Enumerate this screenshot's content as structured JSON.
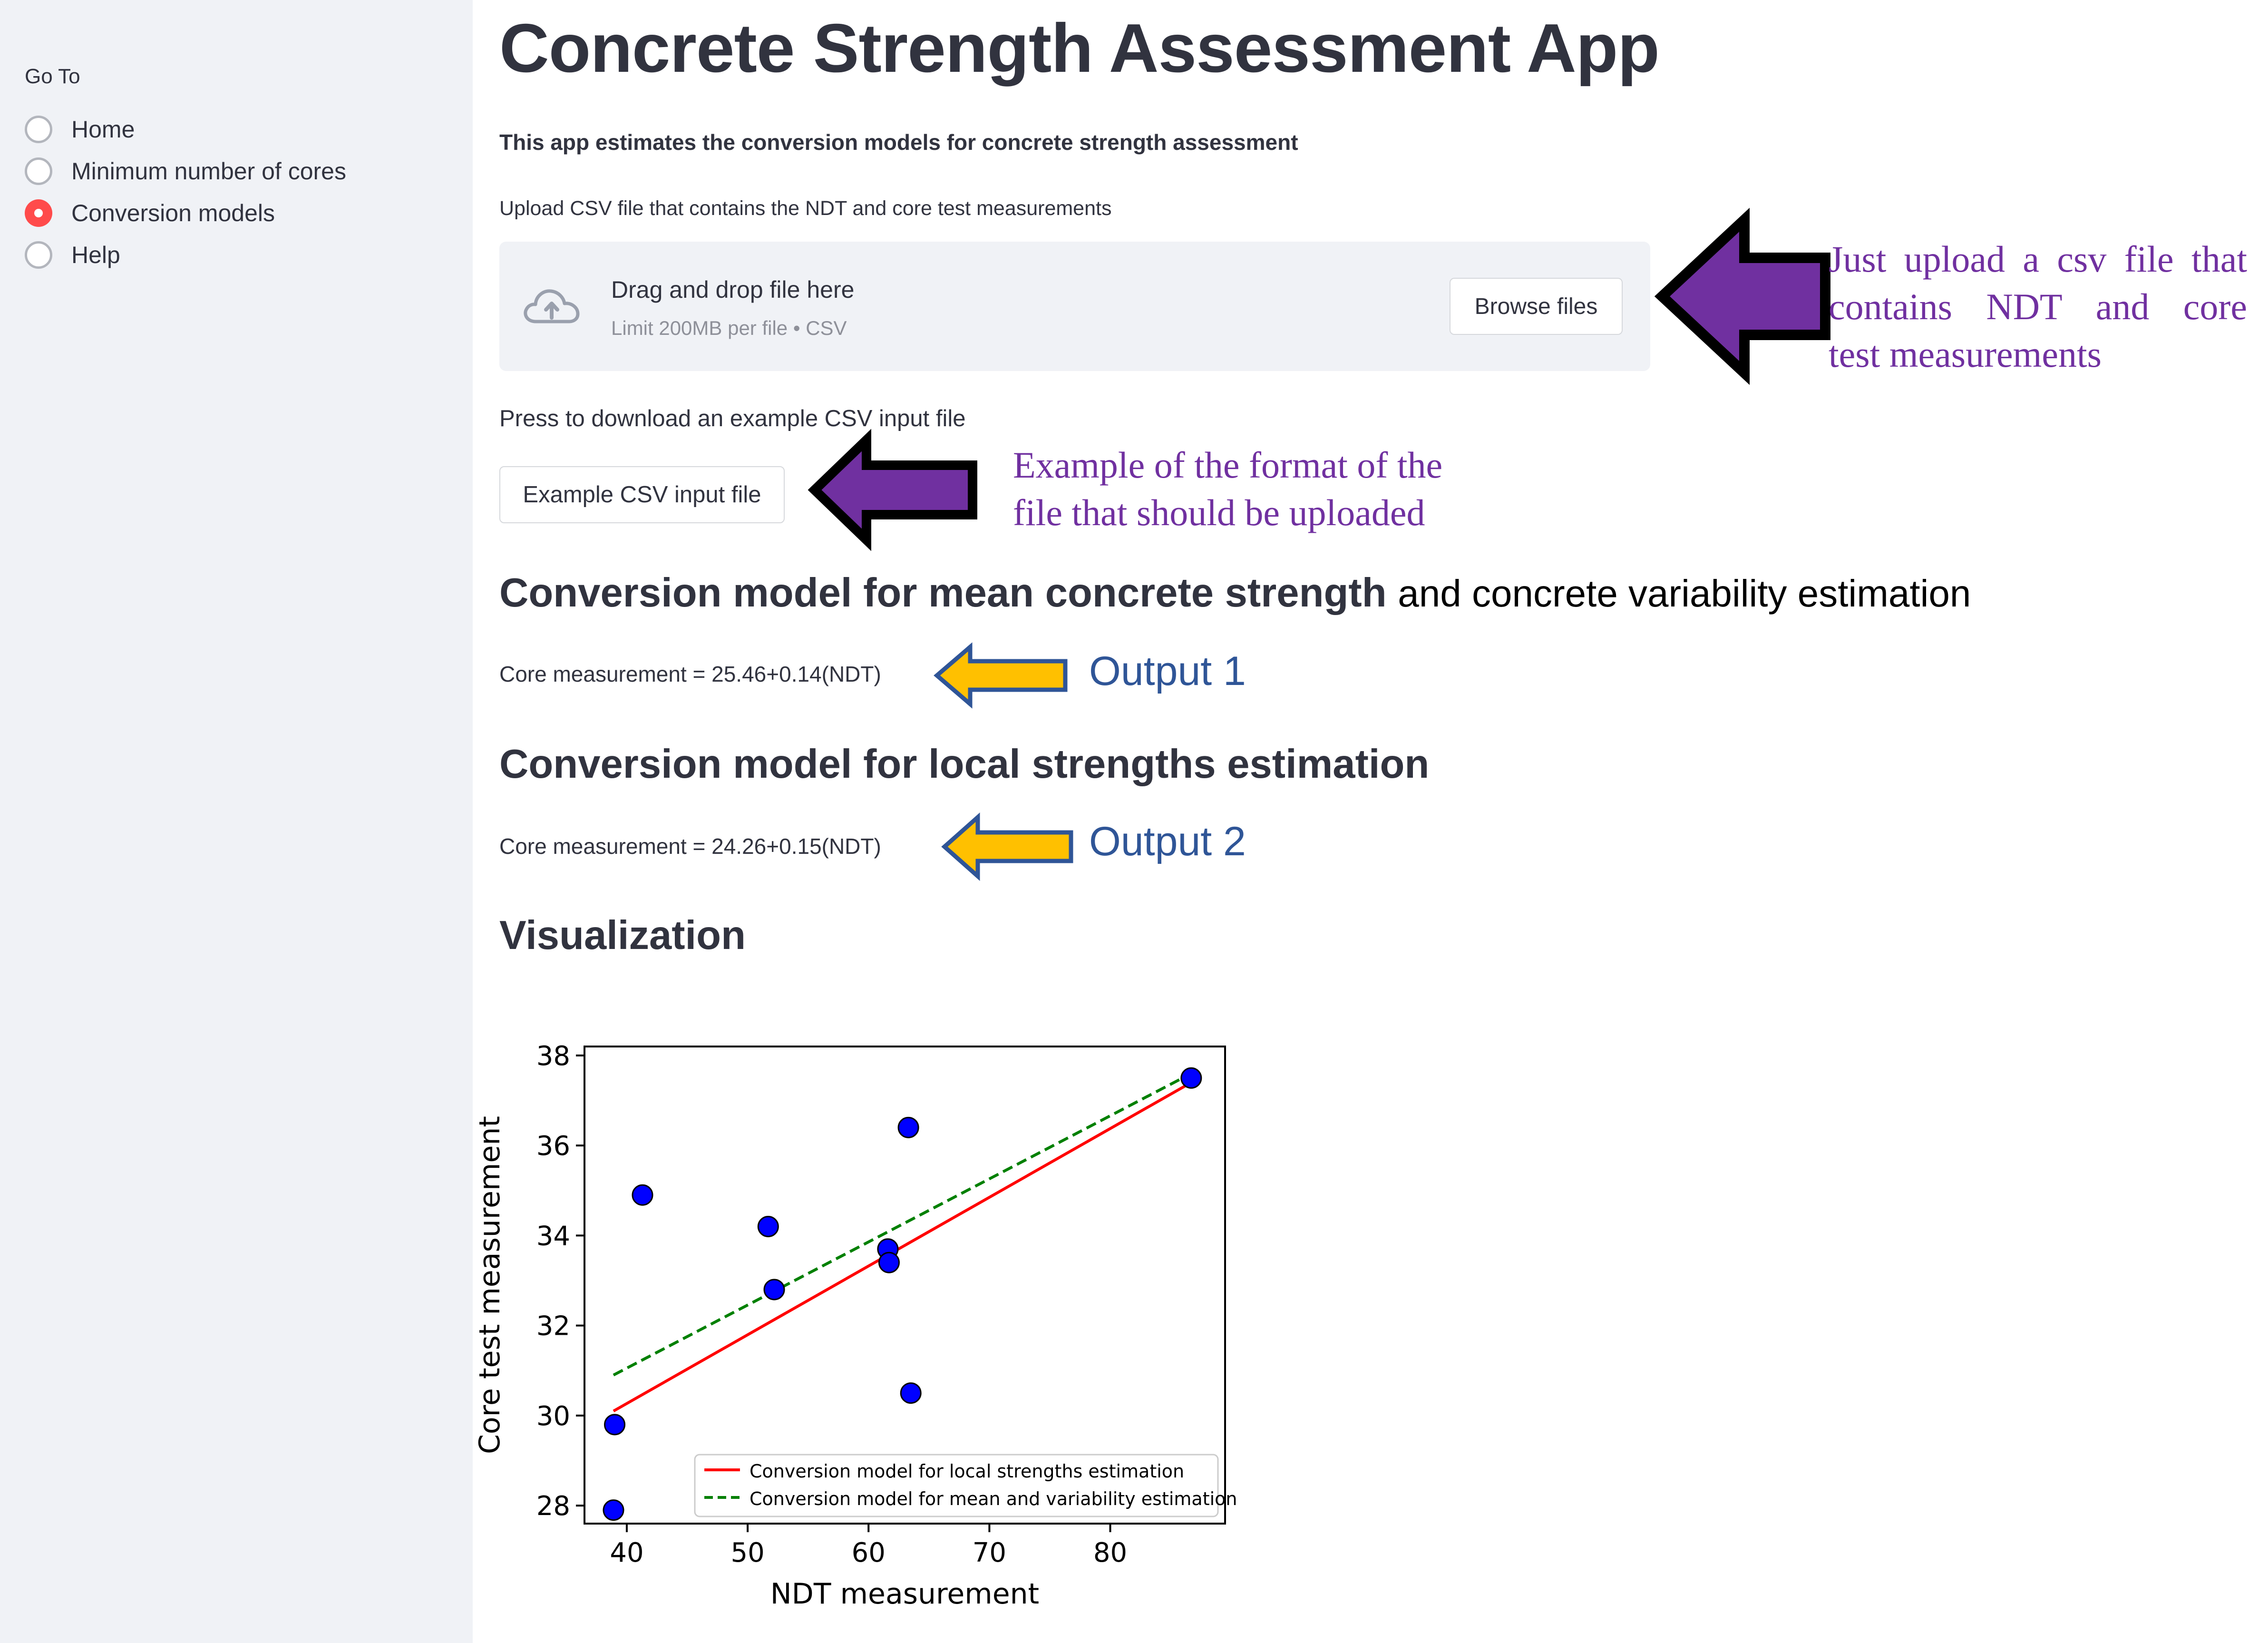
{
  "sidebar": {
    "nav_label": "Go To",
    "items": [
      {
        "label": "Home",
        "selected": false
      },
      {
        "label": "Minimum number of cores",
        "selected": false
      },
      {
        "label": "Conversion models",
        "selected": true
      },
      {
        "label": "Help",
        "selected": false
      }
    ],
    "accent_color": "#ff4b4b"
  },
  "main": {
    "title": "Concrete Strength Assessment App",
    "intro": "This app estimates the conversion models for concrete strength assessment",
    "upload": {
      "label": "Upload CSV file that contains the NDT and core test measurements",
      "drop_text": "Drag and drop file here",
      "limit_text": "Limit 200MB per file • CSV",
      "browse_label": "Browse files",
      "icon": "cloud-upload-icon"
    },
    "download": {
      "label": "Press to download an example CSV input file",
      "button_label": "Example CSV input file"
    },
    "mean_section": {
      "heading": "Conversion model for mean concrete strength",
      "heading_extra": "and concrete variability estimation",
      "output": "Core measurement = 25.46+0.14(NDT)"
    },
    "local_section": {
      "heading": "Conversion model for local strengths estimation",
      "output": "Core measurement = 24.26+0.15(NDT)"
    },
    "visualization_heading": "Visualization"
  },
  "annotations": {
    "upload_note": [
      "Just upload a csv file that",
      "contains NDT and core",
      "test measurements"
    ],
    "example_note": [
      "Example of the format of the",
      "file that should be uploaded"
    ],
    "output1": "Output 1",
    "output2": "Output 2",
    "purple_arrow_color": "#7030a0",
    "yellow_arrow_color": "#ffc000"
  },
  "chart_data": {
    "type": "scatter",
    "xlabel": "NDT measurement",
    "ylabel": "Core test measurement",
    "xlim": [
      36.5,
      89.5
    ],
    "ylim": [
      27.6,
      38.2
    ],
    "xticks": [
      40,
      50,
      60,
      70,
      80
    ],
    "yticks": [
      28,
      30,
      32,
      34,
      36,
      38
    ],
    "grid": false,
    "legend_position": "bottom-right",
    "points": {
      "color": "#0000ff",
      "x": [
        38.9,
        39.0,
        41.3,
        51.7,
        52.2,
        61.6,
        61.7,
        63.3,
        63.5,
        86.7
      ],
      "y": [
        27.9,
        29.8,
        34.9,
        34.2,
        32.8,
        33.7,
        33.4,
        36.4,
        30.5,
        37.5
      ]
    },
    "series": [
      {
        "name": "Conversion model for local strengths estimation",
        "style": "solid",
        "color": "#ff0000",
        "x": [
          38.9,
          86.7
        ],
        "y": [
          30.1,
          37.4
        ]
      },
      {
        "name": "Conversion model for mean and variability estimation",
        "style": "dashed",
        "color": "#008000",
        "x": [
          38.9,
          86.7
        ],
        "y": [
          30.9,
          37.6
        ]
      }
    ]
  }
}
